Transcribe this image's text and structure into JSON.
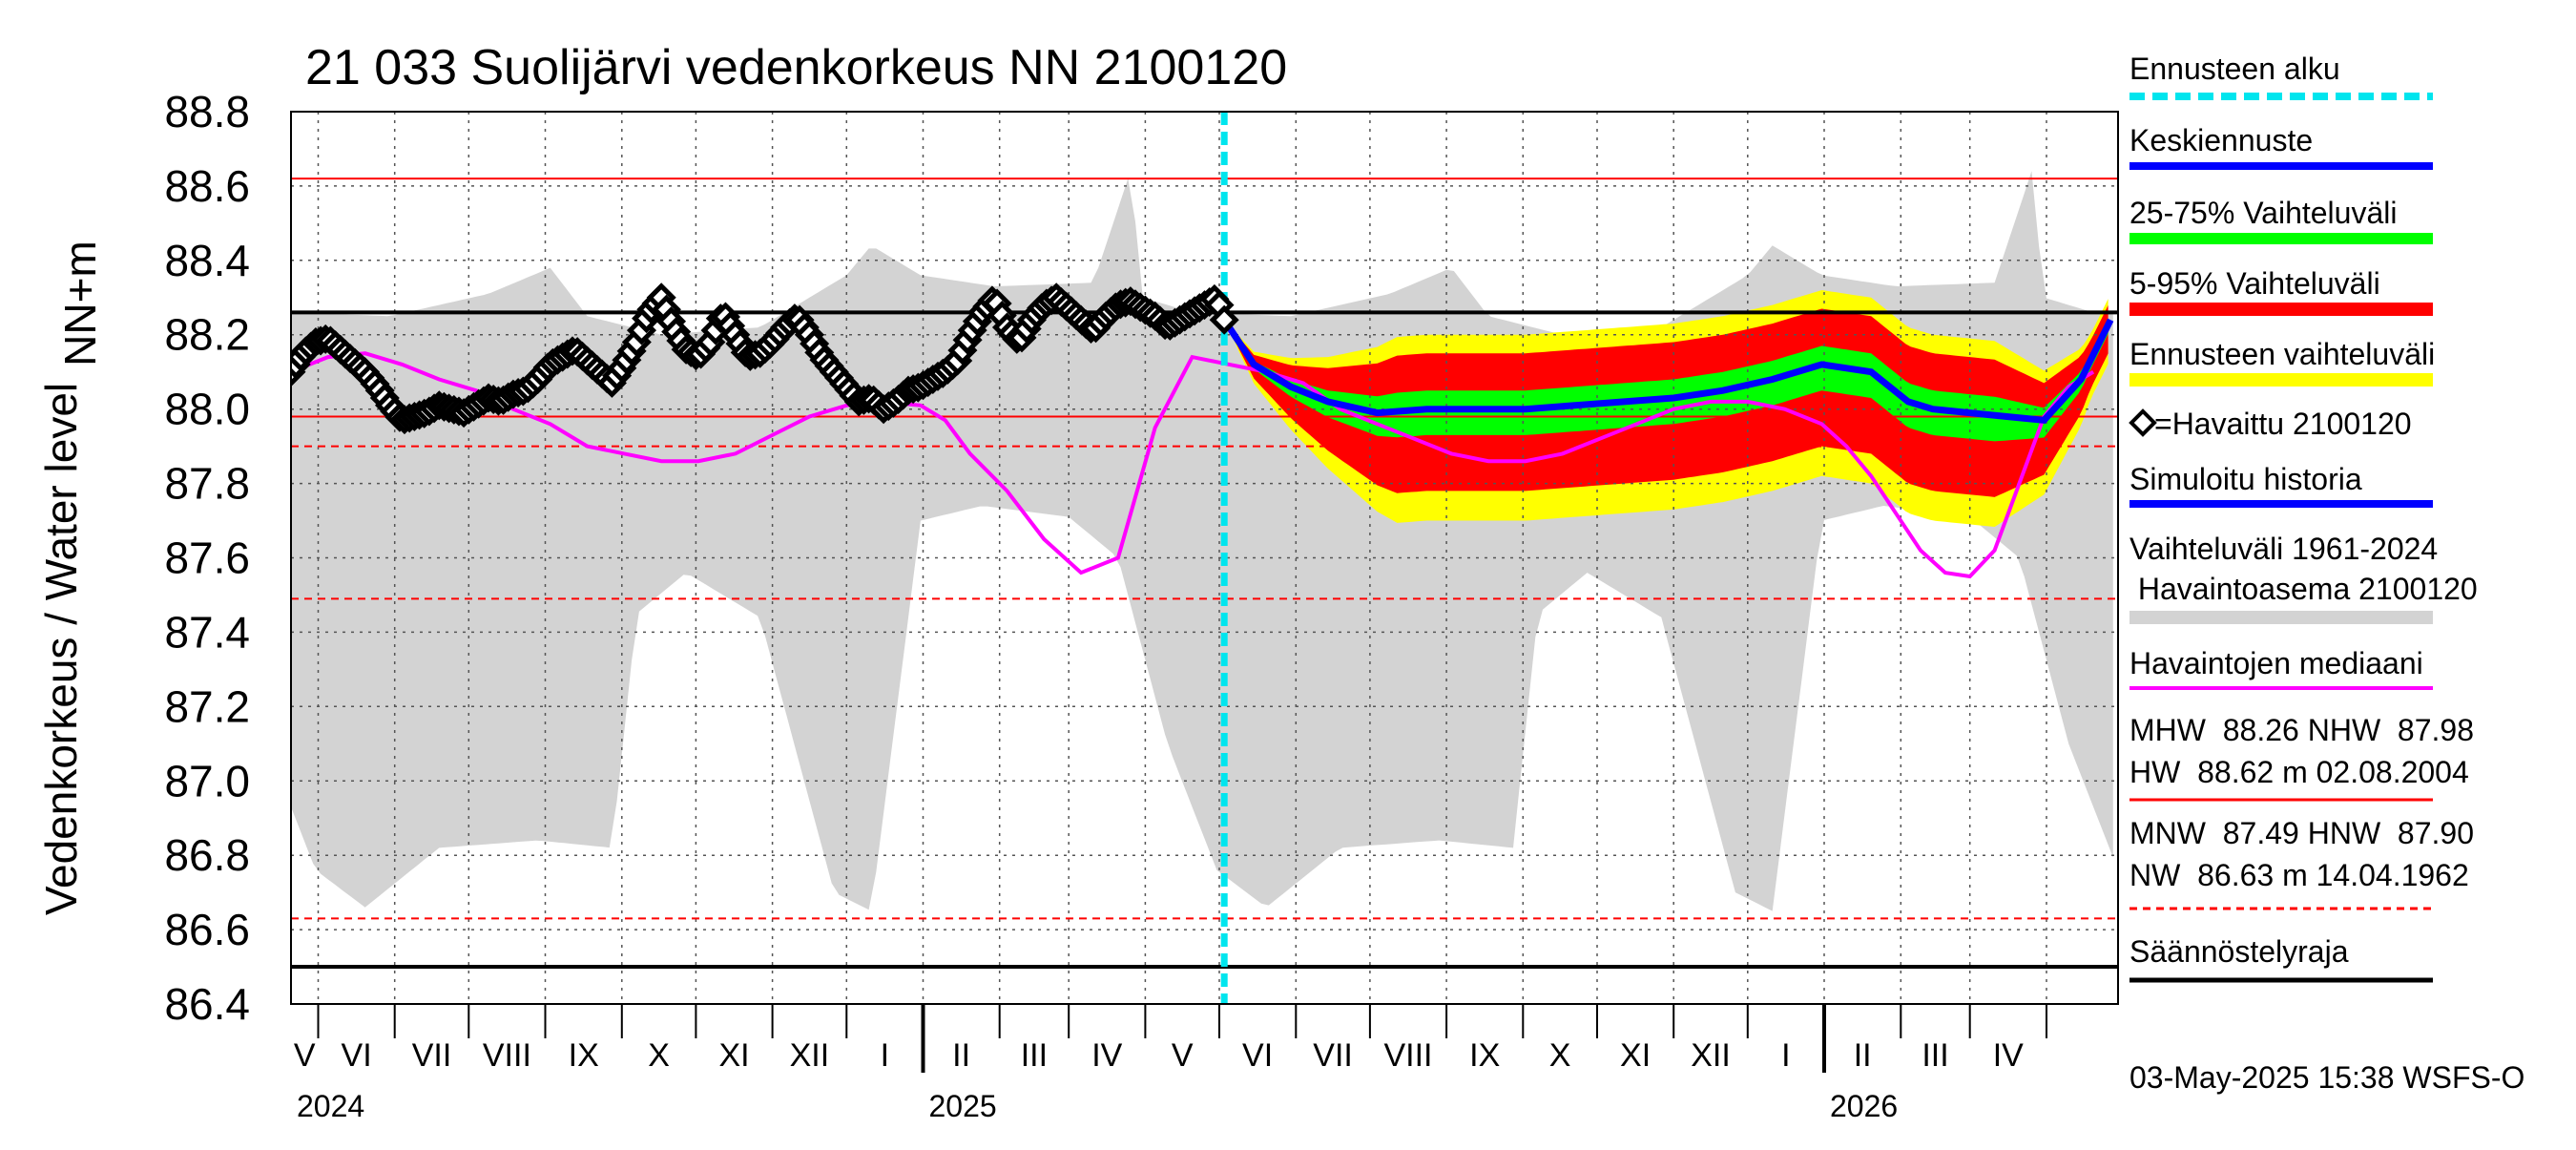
{
  "chart_data": {
    "type": "area",
    "title": "21 033 Suolijärvi vedenkorkeus NN 2100120",
    "ylabel_unit": "NN+m",
    "ylabel": "Vedenkorkeus / Water level",
    "ylim": [
      86.4,
      88.8
    ],
    "yticks": [
      "88.8",
      "88.6",
      "88.4",
      "88.2",
      "88.0",
      "87.8",
      "87.6",
      "87.4",
      "87.2",
      "87.0",
      "86.8",
      "86.6",
      "86.4"
    ],
    "x_range": [
      "2024-04-20",
      "2026-04-30"
    ],
    "months": [
      "V",
      "VI",
      "VII",
      "VIII",
      "IX",
      "X",
      "XI",
      "XII",
      "I",
      "II",
      "III",
      "IV",
      "V",
      "VI",
      "VII",
      "VIII",
      "IX",
      "X",
      "XI",
      "XII",
      "I",
      "II",
      "III",
      "IV"
    ],
    "years": [
      "2024",
      "2025",
      "2026"
    ],
    "forecast_start": "2025-05-03",
    "grid": true,
    "legend_position": "right",
    "reference_lines": {
      "HW": 88.62,
      "MHW": 88.26,
      "NHW": 87.98,
      "HNW": 87.9,
      "MNW": 87.49,
      "NW": 86.63,
      "regulation_limit": 86.5
    },
    "series": [
      {
        "name": "Havaittu 2100120",
        "color": "#000000",
        "x": [
          0,
          5,
          10,
          15,
          20,
          25,
          30,
          35,
          40,
          45,
          50,
          55,
          60,
          65,
          70,
          75,
          80,
          85,
          90,
          95,
          100,
          105,
          110,
          115,
          120,
          125,
          130,
          135,
          140,
          145,
          150,
          155,
          160,
          165,
          170,
          175,
          180,
          185,
          190,
          195,
          200,
          205,
          210,
          215,
          220,
          225,
          230,
          235,
          240,
          245,
          250,
          255,
          260,
          265,
          270,
          275,
          280,
          285,
          290,
          295,
          300,
          305,
          310,
          315,
          320,
          325,
          330,
          335,
          340,
          345,
          350,
          355,
          360,
          365,
          370,
          375,
          378
        ],
        "y": [
          88.1,
          88.15,
          88.18,
          88.19,
          88.16,
          88.13,
          88.1,
          88.06,
          88.01,
          87.97,
          87.98,
          87.99,
          88.01,
          88.0,
          87.99,
          88.01,
          88.03,
          88.02,
          88.04,
          88.05,
          88.08,
          88.12,
          88.14,
          88.16,
          88.13,
          88.1,
          88.07,
          88.12,
          88.18,
          88.26,
          88.3,
          88.22,
          88.16,
          88.14,
          88.18,
          88.26,
          88.2,
          88.14,
          88.15,
          88.18,
          88.22,
          88.25,
          88.2,
          88.14,
          88.1,
          88.06,
          88.02,
          88.03,
          88.0,
          88.02,
          88.05,
          88.06,
          88.08,
          88.1,
          88.13,
          88.2,
          88.26,
          88.3,
          88.22,
          88.18,
          88.24,
          88.28,
          88.3,
          88.27,
          88.24,
          88.21,
          88.25,
          88.28,
          88.29,
          88.27,
          88.25,
          88.22,
          88.24,
          88.26,
          88.28,
          88.3,
          88.24
        ]
      },
      {
        "name": "Havaintojen mediaani",
        "color": "#ff00ff",
        "x": [
          0,
          15,
          30,
          45,
          60,
          75,
          90,
          105,
          120,
          135,
          150,
          165,
          180,
          195,
          210,
          225,
          240,
          255,
          265,
          275,
          290,
          305,
          320,
          335,
          350,
          365,
          380,
          395,
          410,
          425,
          440,
          455,
          470,
          485,
          500,
          515,
          530,
          545,
          560,
          575,
          590,
          605,
          620,
          630,
          640,
          650,
          660,
          670,
          680,
          690,
          700,
          710,
          720,
          730
        ],
        "y": [
          88.1,
          88.14,
          88.15,
          88.12,
          88.08,
          88.05,
          88.0,
          87.96,
          87.9,
          87.88,
          87.86,
          87.86,
          87.88,
          87.93,
          87.98,
          88.01,
          88.02,
          88.01,
          87.97,
          87.88,
          87.78,
          87.65,
          87.56,
          87.6,
          87.95,
          88.14,
          88.12,
          88.1,
          88.07,
          88.0,
          87.96,
          87.92,
          87.88,
          87.86,
          87.86,
          87.88,
          87.92,
          87.96,
          88.0,
          88.02,
          88.02,
          88.0,
          87.96,
          87.9,
          87.82,
          87.72,
          87.62,
          87.56,
          87.55,
          87.62,
          87.8,
          87.98,
          88.06,
          88.1
        ]
      },
      {
        "name": "Keskiennuste",
        "color": "#0000ff",
        "x": [
          378,
          390,
          405,
          420,
          440,
          460,
          480,
          500,
          520,
          540,
          560,
          580,
          600,
          620,
          640,
          655,
          665,
          680,
          695,
          710,
          725,
          737
        ],
        "y": [
          88.24,
          88.12,
          88.06,
          88.02,
          87.99,
          88.0,
          88.0,
          88.0,
          88.01,
          88.02,
          88.03,
          88.05,
          88.08,
          88.12,
          88.1,
          88.02,
          88.0,
          87.99,
          87.98,
          87.97,
          88.08,
          88.24
        ]
      }
    ],
    "bands": [
      {
        "name": "Ennusteen vaihteluväli",
        "color": "#ffff00"
      },
      {
        "name": "5-95% Vaihteluväli",
        "color": "#ff0000"
      },
      {
        "name": "25-75% Vaihteluväli",
        "color": "#00ff00"
      },
      {
        "name": "Vaihteluväli 1961-2024 Havaintoasema 2100120",
        "color": "#d3d3d3"
      }
    ]
  },
  "legend": {
    "ennusteen_alku": "Ennusteen alku",
    "keskiennuste": "Keskiennuste",
    "p25_75": "25-75% Vaihteluväli",
    "p5_95": "5-95% Vaihteluväli",
    "ennusteen_vaihteluvali": "Ennusteen vaihteluväli",
    "havaittu": "=Havaittu 2100120",
    "simuloitu": "Simuloitu historia",
    "vaihteluvali_1": "Vaihteluväli 1961-2024",
    "vaihteluvali_2": " Havaintoasema 2100120",
    "mediaani": "Havaintojen mediaani",
    "stats_high_1": "MHW  88.26 NHW  87.98",
    "stats_high_2": "HW  88.62 m 02.08.2004",
    "stats_low_1": "MNW  87.49 HNW  87.90",
    "stats_low_2": "NW  86.63 m 14.04.1962",
    "saannostelyraja": "Säännöstelyraja"
  },
  "footer": "03-May-2025 15:38 WSFS-O",
  "colors": {
    "forecast_start": "#00e5ee",
    "mean_forecast": "#0000ff",
    "band_25_75": "#00ff00",
    "band_5_95": "#ff0000",
    "band_total": "#ffff00",
    "history": "#d3d3d3",
    "median": "#ff00ff",
    "observed": "#000000",
    "reference_red": "#ff0000"
  }
}
